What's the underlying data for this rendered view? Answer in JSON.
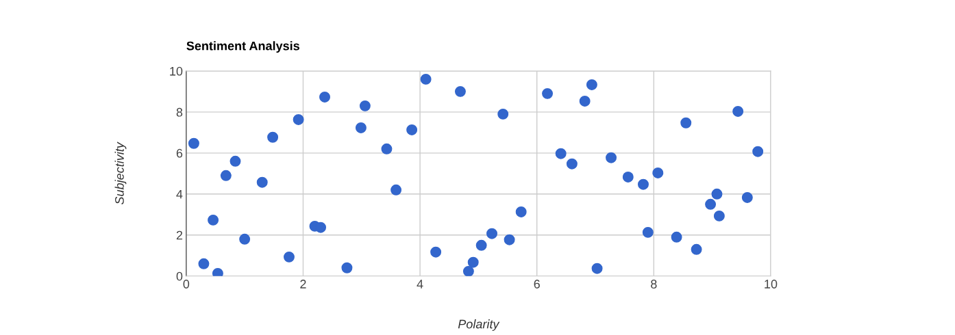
{
  "chart_data": {
    "type": "scatter",
    "title": "Sentiment Analysis",
    "xlabel": "Polarity",
    "ylabel": "Subjectivity",
    "x": [
      0.13,
      0.3,
      0.54,
      0.46,
      0.68,
      0.84,
      1.0,
      1.3,
      1.48,
      1.76,
      1.92,
      2.2,
      2.3,
      2.37,
      2.75,
      2.99,
      3.06,
      3.43,
      3.59,
      3.86,
      4.1,
      4.27,
      4.69,
      4.83,
      4.91,
      5.05,
      5.23,
      5.42,
      5.53,
      5.73,
      6.18,
      6.41,
      6.6,
      6.82,
      6.94,
      7.03,
      7.27,
      7.56,
      7.82,
      7.9,
      8.07,
      8.39,
      8.55,
      8.73,
      8.97,
      9.08,
      9.12,
      9.44,
      9.6,
      9.78
    ],
    "series": [
      {
        "color": "#3366cc",
        "values": [
          6.47,
          0.6,
          0.13,
          2.73,
          4.9,
          5.6,
          1.8,
          4.57,
          6.77,
          0.93,
          7.63,
          2.43,
          2.37,
          8.73,
          0.4,
          7.23,
          8.3,
          6.2,
          4.2,
          7.13,
          9.6,
          1.17,
          9.0,
          0.23,
          0.67,
          1.5,
          2.07,
          7.9,
          1.77,
          3.13,
          8.9,
          5.97,
          5.47,
          8.53,
          9.33,
          0.37,
          5.77,
          4.83,
          4.47,
          2.13,
          5.03,
          1.9,
          7.47,
          1.3,
          3.5,
          4.0,
          2.93,
          8.03,
          3.83,
          6.07
        ]
      }
    ],
    "xlim": [
      0,
      10
    ],
    "ylim": [
      0,
      10
    ],
    "xticks": [
      0,
      2,
      4,
      6,
      8,
      10
    ],
    "yticks": [
      0,
      2,
      4,
      6,
      8,
      10
    ],
    "grid": true,
    "marker": "circle"
  }
}
